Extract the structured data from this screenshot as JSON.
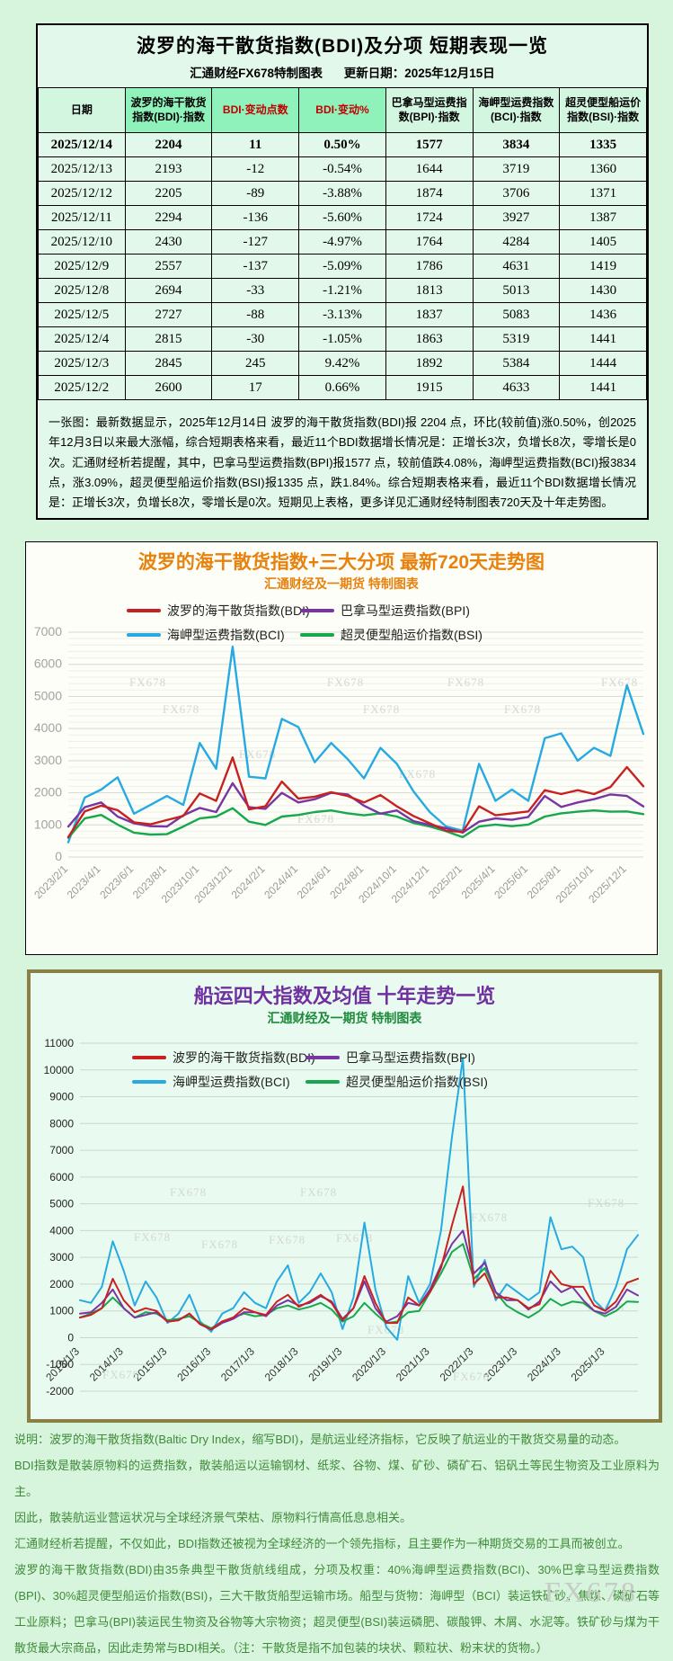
{
  "watermark": "FX678",
  "table": {
    "title": "波罗的海干散货指数(BDI)及分项 短期表现一览",
    "subtitle_left": "汇通财经FX678特制图表",
    "subtitle_right": "更新日期：2025年12月15日",
    "columns": [
      "日期",
      "波罗的海干散货指数(BDI)·指数",
      "BDI·变动点数",
      "BDI·变动%",
      "巴拿马型运费指数(BPI)·指数",
      "海岬型运费指数(BCI)·指数",
      "超灵便型船运价指数(BSI)·指数"
    ],
    "rows": [
      [
        "2025/12/14",
        "2204",
        "11",
        "0.50%",
        "1577",
        "3834",
        "1335"
      ],
      [
        "2025/12/13",
        "2193",
        "-12",
        "-0.54%",
        "1644",
        "3719",
        "1360"
      ],
      [
        "2025/12/12",
        "2205",
        "-89",
        "-3.88%",
        "1874",
        "3706",
        "1371"
      ],
      [
        "2025/12/11",
        "2294",
        "-136",
        "-5.60%",
        "1724",
        "3927",
        "1387"
      ],
      [
        "2025/12/10",
        "2430",
        "-127",
        "-4.97%",
        "1764",
        "4284",
        "1405"
      ],
      [
        "2025/12/9",
        "2557",
        "-137",
        "-5.09%",
        "1786",
        "4631",
        "1419"
      ],
      [
        "2025/12/8",
        "2694",
        "-33",
        "-1.21%",
        "1813",
        "5013",
        "1430"
      ],
      [
        "2025/12/5",
        "2727",
        "-88",
        "-3.13%",
        "1837",
        "5083",
        "1436"
      ],
      [
        "2025/12/4",
        "2815",
        "-30",
        "-1.05%",
        "1863",
        "5319",
        "1441"
      ],
      [
        "2025/12/3",
        "2845",
        "245",
        "9.42%",
        "1892",
        "5384",
        "1444"
      ],
      [
        "2025/12/2",
        "2600",
        "17",
        "0.66%",
        "1915",
        "4633",
        "1441"
      ]
    ],
    "note": "一张图：最新数据显示，2025年12月14日 波罗的海干散货指数(BDI)报 2204 点，环比(较前值)涨0.50%，创2025年12月3日以来最大涨幅，综合短期表格来看，最近11个BDI数据增长情况是：正增长3次，负增长8次，零增长是0次。汇通财经析若提醒，其中，巴拿马型运费指数(BPI)报1577 点，较前值跌4.08%，海岬型运费指数(BCI)报3834 点，涨3.09%，超灵便型船运价指数(BSI)报1335 点，跌1.84%。综合短期表格来看，最近11个BDI数据增长情况是：正增长3次，负增长8次，零增长是0次。短期见上表格，更多详见汇通财经特制图表720天及十年走势图。"
  },
  "chart_data": [
    {
      "type": "line",
      "title": "波罗的海干散货指数+三大分项  最新720天走势图",
      "subtitle": "汇通财经及一期货 特制图表",
      "ylim": [
        0,
        7000
      ],
      "y_tick_step": 1000,
      "grid": true,
      "legend_position": "top",
      "x": [
        "2023/2",
        "2023/3",
        "2023/4",
        "2023/5",
        "2023/6",
        "2023/7",
        "2023/8",
        "2023/9",
        "2023/10",
        "2023/11",
        "2023/12",
        "2024/1",
        "2024/2",
        "2024/3",
        "2024/4",
        "2024/5",
        "2024/6",
        "2024/7",
        "2024/8",
        "2024/9",
        "2024/10",
        "2024/11",
        "2024/12",
        "2025/1",
        "2025/2",
        "2025/3",
        "2025/4",
        "2025/5",
        "2025/6",
        "2025/7",
        "2025/8",
        "2025/9",
        "2025/10",
        "2025/11",
        "2025/12",
        "2025/12/14"
      ],
      "x_tick_labels": [
        "2023/2/1",
        "2023/4/1",
        "2023/6/1",
        "2023/8/1",
        "2023/10/1",
        "2023/12/1",
        "2024/2/1",
        "2024/4/1",
        "2024/6/1",
        "2024/8/1",
        "2024/10/1",
        "2024/12/1",
        "2025/2/1",
        "2025/4/1",
        "2025/6/1",
        "2025/8/1",
        "2025/10/1",
        "2025/12/1"
      ],
      "x_tick_every": 2,
      "series": [
        {
          "name": "波罗的海干散货指数(BDI)",
          "color": "#c82121",
          "values": [
            620,
            1420,
            1600,
            1460,
            1080,
            1020,
            1150,
            1280,
            1980,
            1750,
            3100,
            1480,
            1580,
            2350,
            1820,
            1880,
            2020,
            1900,
            1700,
            1930,
            1580,
            1280,
            1050,
            820,
            780,
            1580,
            1300,
            1360,
            1420,
            2080,
            1960,
            2080,
            1960,
            2180,
            2800,
            2204
          ]
        },
        {
          "name": "巴拿马型运费指数(BPI)",
          "color": "#7a35a3",
          "values": [
            950,
            1550,
            1700,
            1260,
            1050,
            960,
            950,
            1300,
            1530,
            1400,
            2300,
            1550,
            1500,
            2000,
            1700,
            1800,
            2000,
            1950,
            1600,
            1350,
            1450,
            1120,
            1000,
            900,
            760,
            1100,
            1200,
            1160,
            1250,
            1900,
            1560,
            1700,
            1800,
            1950,
            1900,
            1577
          ]
        },
        {
          "name": "海岬型运费指数(BCI)",
          "color": "#27aae1",
          "values": [
            460,
            1850,
            2100,
            2480,
            1350,
            1620,
            1900,
            1620,
            3550,
            2750,
            6550,
            2500,
            2450,
            4300,
            4050,
            2950,
            3550,
            3050,
            2450,
            3400,
            2900,
            2050,
            1400,
            950,
            820,
            2900,
            1750,
            2100,
            1750,
            3700,
            3850,
            3000,
            3400,
            3150,
            5350,
            3834
          ]
        },
        {
          "name": "超灵便型船运价指数(BSI)",
          "color": "#17a74d",
          "values": [
            600,
            1200,
            1310,
            1010,
            760,
            700,
            710,
            950,
            1200,
            1260,
            1520,
            1100,
            1000,
            1260,
            1310,
            1400,
            1450,
            1360,
            1300,
            1360,
            1260,
            1060,
            950,
            800,
            620,
            950,
            1010,
            960,
            1010,
            1260,
            1360,
            1410,
            1450,
            1410,
            1420,
            1335
          ]
        }
      ]
    },
    {
      "type": "line",
      "title": "船运四大指数及均值 十年走势一览",
      "subtitle": "汇通财经及一期货 特制图表",
      "ylim": [
        -2000,
        11000
      ],
      "y_tick_step": 1000,
      "grid": true,
      "legend_position": "top",
      "x": [
        "2013/1",
        "2013/4",
        "2013/7",
        "2013/10",
        "2014/1",
        "2014/4",
        "2014/7",
        "2014/10",
        "2015/1",
        "2015/4",
        "2015/7",
        "2015/10",
        "2016/1",
        "2016/4",
        "2016/7",
        "2016/10",
        "2017/1",
        "2017/4",
        "2017/7",
        "2017/10",
        "2018/1",
        "2018/4",
        "2018/7",
        "2018/10",
        "2019/1",
        "2019/4",
        "2019/7",
        "2019/10",
        "2020/1",
        "2020/4",
        "2020/7",
        "2020/10",
        "2021/1",
        "2021/4",
        "2021/7",
        "2021/10",
        "2022/1",
        "2022/4",
        "2022/7",
        "2022/10",
        "2023/1",
        "2023/4",
        "2023/7",
        "2023/10",
        "2024/1",
        "2024/4",
        "2024/7",
        "2024/10",
        "2025/1",
        "2025/4",
        "2025/7",
        "2025/10"
      ],
      "x_tick_labels": [
        "2013/1/3",
        "2014/1/3",
        "2015/1/3",
        "2016/1/3",
        "2017/1/3",
        "2018/1/3",
        "2019/1/3",
        "2020/1/3",
        "2021/1/3",
        "2022/1/3",
        "2023/1/3",
        "2024/1/3",
        "2025/1/3"
      ],
      "x_tick_every": 4,
      "series": [
        {
          "name": "波罗的海干散货指数(BDI)",
          "color": "#c82121",
          "values": [
            750,
            850,
            1100,
            2200,
            1400,
            950,
            1100,
            1000,
            600,
            650,
            900,
            500,
            310,
            610,
            750,
            1100,
            950,
            850,
            1350,
            1600,
            1150,
            1350,
            1600,
            1300,
            650,
            1100,
            2300,
            1300,
            550,
            550,
            1500,
            1200,
            1700,
            2600,
            4200,
            5650,
            2000,
            2400,
            1500,
            1500,
            1400,
            1100,
            1250,
            2500,
            2000,
            1900,
            1900,
            1200,
            1000,
            1350,
            2050,
            2204
          ]
        },
        {
          "name": "巴拿马型运费指数(BPI)",
          "color": "#7a35a3",
          "values": [
            900,
            950,
            1300,
            1800,
            1100,
            750,
            850,
            950,
            600,
            650,
            900,
            500,
            300,
            550,
            700,
            950,
            950,
            800,
            1200,
            1400,
            1200,
            1300,
            1550,
            1350,
            700,
            1100,
            2100,
            1100,
            600,
            800,
            1300,
            1200,
            1800,
            2700,
            3500,
            4000,
            2400,
            2800,
            1700,
            1400,
            1400,
            1050,
            1350,
            2100,
            1700,
            1900,
            1400,
            1000,
            900,
            1150,
            1800,
            1577
          ]
        },
        {
          "name": "海岬型运费指数(BCI)",
          "color": "#27aae1",
          "values": [
            1400,
            1300,
            1900,
            3600,
            2500,
            1200,
            2100,
            1500,
            550,
            900,
            1600,
            600,
            220,
            900,
            1100,
            1700,
            1300,
            1100,
            2100,
            2700,
            1300,
            1700,
            2400,
            1700,
            320,
            1500,
            4300,
            1800,
            400,
            -80,
            2300,
            1300,
            2000,
            4000,
            7500,
            10450,
            1900,
            2900,
            1400,
            2000,
            1700,
            1400,
            1700,
            4500,
            3300,
            3400,
            3000,
            1400,
            1000,
            1900,
            3300,
            3834
          ]
        },
        {
          "name": "超灵便型船运价指数(BSI)",
          "color": "#17a74d",
          "values": [
            750,
            900,
            1100,
            1500,
            1100,
            750,
            950,
            900,
            650,
            700,
            800,
            550,
            350,
            600,
            750,
            900,
            800,
            850,
            1100,
            1200,
            1050,
            1150,
            1300,
            1050,
            600,
            800,
            1300,
            900,
            550,
            600,
            950,
            1000,
            1700,
            2400,
            3200,
            3500,
            2200,
            2600,
            1700,
            1200,
            950,
            750,
            1000,
            1450,
            1200,
            1350,
            1300,
            1000,
            800,
            1000,
            1350,
            1335
          ]
        }
      ]
    }
  ],
  "footnotes": [
    "说明：波罗的海干散货指数(Baltic Dry Index，缩写BDI)，是航运业经济指标，它反映了航运业的干散货交易量的动态。",
    "BDI指数是散装原物料的运费指数，散装船运以运输钢材、纸浆、谷物、煤、矿砂、磷矿石、铝矾土等民生物资及工业原料为主。",
    "因此，散装航运业营运状况与全球经济景气荣枯、原物料行情高低息息相关。",
    "汇通财经析若提醒，不仅如此，BDI指数还被视为全球经济的一个领先指标，且主要作为一种期货交易的工具而被创立。",
    "波罗的海干散货指数(BDI)由35条典型干散货航线组成，分项及权重：40%海岬型运费指数(BCI)、30%巴拿马型运费指数(BPI)、30%超灵便型船运价指数(BSI)，三大干散货船型运输市场。船型与货物：海岬型（BCI）装运铁矿砂、焦煤、磷矿石等工业原料；巴拿马(BPI)装运民生物资及谷物等大宗物资；超灵便型(BSI)装运磷肥、碳酸钾、木屑、水泥等。铁矿砂与煤为干散货最大宗商品，因此走势常与BDI相关。（注：干散货是指不加包装的块状、颗粒状、粉末状的货物。）"
  ]
}
